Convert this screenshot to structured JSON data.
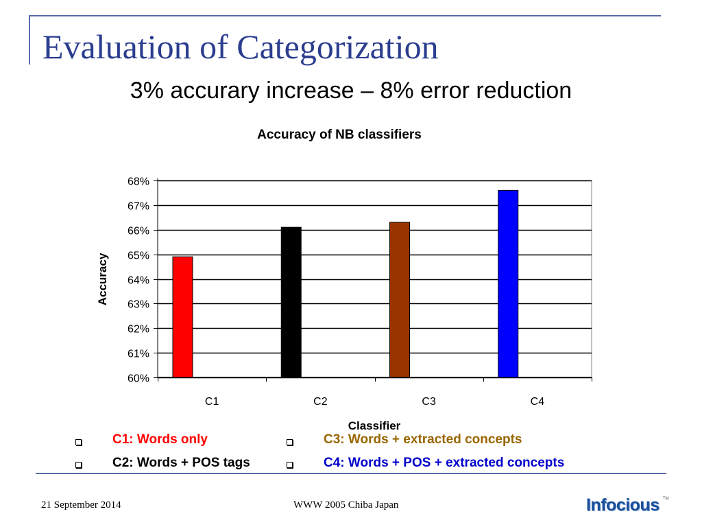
{
  "slide": {
    "title": "Evaluation of Categorization",
    "subtitle": "3% accurary increase – 8% error reduction"
  },
  "chart_data": {
    "type": "bar",
    "title": "Accuracy of NB classifiers",
    "xlabel": "Classifier",
    "ylabel": "Accuracy",
    "categories": [
      "C1",
      "C2",
      "C3",
      "C4"
    ],
    "values": [
      0.649,
      0.661,
      0.663,
      0.676
    ],
    "bar_colors": [
      "#ff0000",
      "#000000",
      "#993300",
      "#0000ff"
    ],
    "ylim": [
      0.6,
      0.68
    ],
    "yticks": [
      "60%",
      "61%",
      "62%",
      "63%",
      "64%",
      "65%",
      "66%",
      "67%",
      "68%"
    ],
    "grid": true,
    "legend": "none"
  },
  "legend": {
    "c1": {
      "text": "C1: Words only",
      "color": "#ff0000"
    },
    "c2": {
      "text": "C2: Words + POS tags",
      "color": "#000000"
    },
    "c3": {
      "text": "C3: Words + extracted concepts",
      "color": "#996600"
    },
    "c4": {
      "text": "C4: Words + POS + extracted concepts",
      "color": "#0000cc"
    }
  },
  "footer": {
    "date": "21 September 2014",
    "event": "WWW 2005 Chiba Japan",
    "logo_text": "Infocious",
    "logo_tm": "TM"
  }
}
